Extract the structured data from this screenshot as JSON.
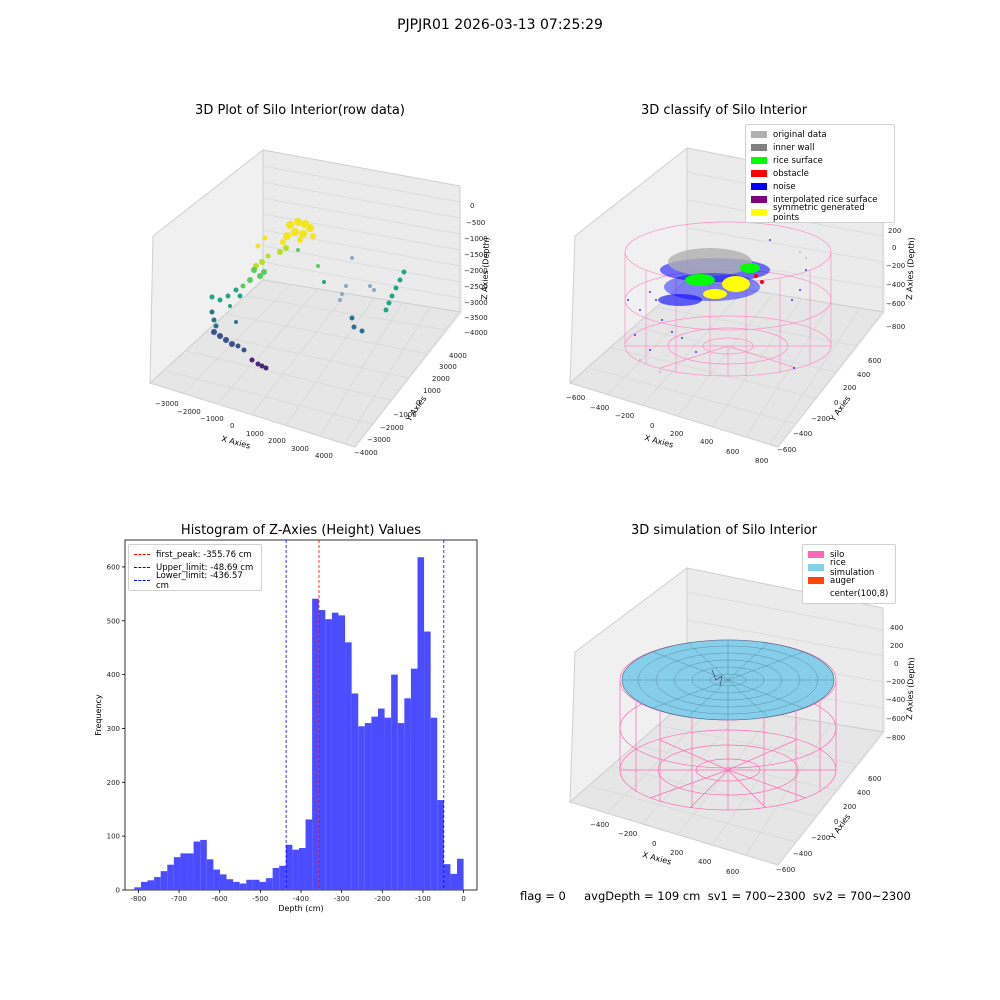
{
  "suptitle": "PJPJR01 2026-03-13 07:25:29",
  "status_line": "flag = 0     avgDepth = 109 cm  sv1 = 700~2300  sv2 = 700~2300",
  "chart_data": [
    {
      "id": "raw3d",
      "type": "scatter",
      "projection": "3d",
      "title": "3D Plot of Silo Interior(row data)",
      "xlabel": "X Axies",
      "ylabel": "Y Axies",
      "zlabel": "Z Axies (Depth)",
      "x_ticks": [
        "−3000",
        "−2000",
        "−1000",
        "0",
        "1000",
        "2000",
        "3000",
        "4000"
      ],
      "y_ticks": [
        "−4000",
        "−3000",
        "−2000",
        "−1000",
        "0",
        "1000",
        "2000",
        "3000",
        "4000"
      ],
      "z_ticks": [
        "0",
        "−500",
        "−1000",
        "−1500",
        "−2000",
        "−2500",
        "−3000",
        "−3500",
        "−4000"
      ],
      "colormap": "viridis",
      "grid": true
    },
    {
      "id": "classify3d",
      "type": "scatter",
      "projection": "3d",
      "title": "3D classify of Silo Interior",
      "xlabel": "X Axies",
      "ylabel": "Y Axies",
      "zlabel": "Z Axies (Depth)",
      "x_ticks": [
        "−600",
        "−400",
        "−200",
        "0",
        "200",
        "400",
        "600",
        "800"
      ],
      "y_ticks": [
        "−600",
        "−400",
        "−200",
        "0",
        "200",
        "400",
        "600"
      ],
      "z_ticks": [
        "200",
        "0",
        "−200",
        "−400",
        "−600",
        "−800"
      ],
      "legend_position": "top-right",
      "legend": [
        {
          "label": "original data",
          "color": "#b0b0b0"
        },
        {
          "label": "inner wall",
          "color": "#808080"
        },
        {
          "label": "rice surface",
          "color": "#00ff00"
        },
        {
          "label": "obstacle",
          "color": "#ff0000"
        },
        {
          "label": "noise",
          "color": "#0000ff"
        },
        {
          "label": "interpolated rice surface",
          "color": "#800080"
        },
        {
          "label": "symmetric generated points",
          "color": "#ffff00"
        }
      ],
      "grid": true
    },
    {
      "id": "hist",
      "type": "bar",
      "title": "Histogram of Z-Axies (Height) Values",
      "xlabel": "Depth (cm)",
      "ylabel": "Frequency",
      "xlim": [
        -833,
        33
      ],
      "ylim": [
        0,
        650
      ],
      "x_ticks": [
        -800,
        -700,
        -600,
        -500,
        -400,
        -300,
        -200,
        -100,
        0
      ],
      "y_ticks": [
        0,
        100,
        200,
        300,
        400,
        500,
        600
      ],
      "bin_start": -810,
      "bin_width": 16.2,
      "values": [
        5,
        15,
        18,
        24,
        35,
        47,
        61,
        68,
        68,
        90,
        93,
        57,
        38,
        29,
        20,
        15,
        12,
        19,
        19,
        15,
        22,
        41,
        45,
        84,
        75,
        78,
        131,
        541,
        520,
        503,
        515,
        510,
        460,
        365,
        304,
        310,
        322,
        337,
        320,
        400,
        310,
        356,
        411,
        618,
        480,
        320,
        167,
        48,
        30,
        58
      ],
      "bar_color": "#4b4bff",
      "lines": [
        {
          "label": "first_peak: -355.76 cm",
          "x": -355.76,
          "color": "#ff0000"
        },
        {
          "label": "Upper_limit: -48.69 cm",
          "x": -48.69,
          "color": "#0000ff"
        },
        {
          "label": "Lower_limit: -436.57 cm",
          "x": -436.57,
          "color": "#0000ff"
        }
      ],
      "legend_position": "top-left"
    },
    {
      "id": "sim3d",
      "type": "surface",
      "projection": "3d",
      "title": "3D simulation of Silo Interior",
      "xlabel": "X Axies",
      "ylabel": "Y Axies",
      "zlabel": "Z Axies (Depth)",
      "x_ticks": [
        "−400",
        "−200",
        "0",
        "200",
        "400",
        "600"
      ],
      "y_ticks": [
        "−600",
        "−400",
        "−200",
        "0",
        "200",
        "400",
        "600"
      ],
      "z_ticks": [
        "400",
        "200",
        "0",
        "−200",
        "−400",
        "−600",
        "−800"
      ],
      "legend_position": "top-right",
      "legend": [
        {
          "label": "silo",
          "color": "#ff69b4"
        },
        {
          "label": "rice simulation",
          "color": "#87ceeb"
        },
        {
          "label": "auger",
          "color": "#ff4500"
        },
        {
          "label": "center(100,8)",
          "color": ""
        }
      ],
      "grid": true
    }
  ]
}
